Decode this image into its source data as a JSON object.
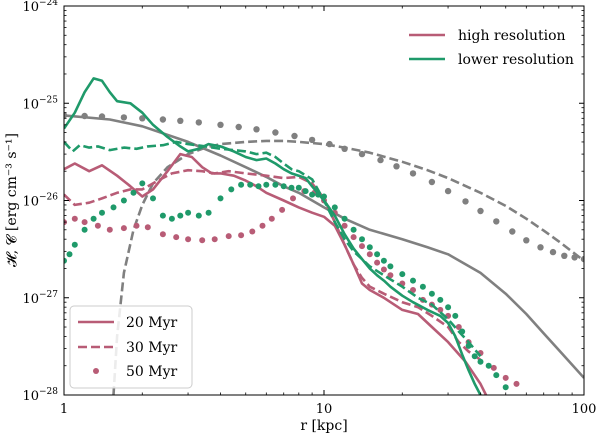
{
  "colors": {
    "high": "#b85c76",
    "lower": "#1f9a6a",
    "reference": "#808080"
  },
  "chart_data": {
    "type": "line",
    "xscale": "log",
    "yscale": "log",
    "xlim": [
      1,
      100
    ],
    "ylim": [
      1e-28,
      1e-24
    ],
    "xlabel": "r [kpc]",
    "ylabel": "𝓗, 𝓒 [erg cm⁻³ s⁻¹]",
    "x_ticks": [
      {
        "value": 1,
        "label": "1"
      },
      {
        "value": 10,
        "label": "10"
      },
      {
        "value": 100,
        "label": "100"
      }
    ],
    "y_ticks": [
      {
        "value": 1e-28,
        "mant": "10",
        "exp": "−28"
      },
      {
        "value": 1e-27,
        "mant": "10",
        "exp": "−27"
      },
      {
        "value": 1e-26,
        "mant": "10",
        "exp": "−26"
      },
      {
        "value": 1e-25,
        "mant": "10",
        "exp": "−25"
      },
      {
        "value": 1e-24,
        "mant": "10",
        "exp": "−24"
      }
    ],
    "legend_resolution": {
      "placement": "top-right",
      "entries": [
        {
          "label": "high resolution",
          "color_key": "high"
        },
        {
          "label": "lower resolution",
          "color_key": "lower"
        }
      ]
    },
    "legend_time": {
      "placement": "lower-left",
      "entries": [
        {
          "label": "20 Myr",
          "style": "solid"
        },
        {
          "label": "30 Myr",
          "style": "dashed"
        },
        {
          "label": "50 Myr",
          "style": "dotted"
        }
      ]
    },
    "series": [
      {
        "id": "high-20",
        "group": "high",
        "style": "solid",
        "x": [
          1.0,
          1.1,
          1.25,
          1.4,
          1.6,
          1.8,
          2.0,
          2.2,
          2.5,
          2.8,
          3.1,
          3.4,
          3.7,
          4.0,
          4.5,
          5,
          5.5,
          6,
          7,
          8,
          9,
          10,
          11,
          12,
          13,
          14,
          15,
          17,
          20,
          23,
          26,
          30,
          35,
          40,
          42
        ],
        "y": [
          2.1e-26,
          2.4e-26,
          2e-26,
          2.3e-26,
          1.8e-26,
          1.4e-26,
          1.1e-26,
          1.3e-26,
          2e-26,
          3e-26,
          2.8e-26,
          2.2e-26,
          1.9e-26,
          1.9e-26,
          1.8e-26,
          1.6e-26,
          1.4e-26,
          1.2e-26,
          1e-26,
          8.5e-27,
          7.5e-27,
          6.8e-27,
          5.5e-27,
          3.5e-27,
          2.2e-27,
          1.4e-27,
          1.2e-27,
          1e-27,
          7.5e-28,
          6.8e-28,
          5e-28,
          3.5e-28,
          2.2e-28,
          1.3e-28,
          1e-28
        ]
      },
      {
        "id": "high-30",
        "group": "high",
        "style": "dashed",
        "x": [
          1.0,
          1.1,
          1.25,
          1.4,
          1.6,
          1.8,
          2.0,
          2.3,
          2.6,
          3.0,
          3.4,
          3.8,
          4.3,
          5,
          6,
          7,
          8,
          9,
          10,
          11,
          12,
          13,
          14,
          15,
          17,
          20,
          23,
          26,
          30,
          33,
          36,
          40
        ],
        "y": [
          1.15e-26,
          9e-27,
          9.5e-27,
          1.05e-26,
          1.2e-26,
          1.3e-26,
          1.3e-26,
          1.6e-26,
          1.9e-26,
          2.05e-26,
          2e-26,
          1.9e-26,
          2e-26,
          1.9e-26,
          1.8e-26,
          1.7e-26,
          1.75e-26,
          1.5e-26,
          1.05e-26,
          6e-27,
          3.5e-27,
          2.2e-27,
          1.6e-27,
          1.3e-27,
          1.1e-27,
          9e-28,
          8e-28,
          6.5e-28,
          5e-28,
          3.5e-28,
          2.8e-28,
          2.3e-28
        ]
      },
      {
        "id": "high-50",
        "group": "high",
        "style": "dotted",
        "x": [
          1.0,
          1.1,
          1.2,
          1.35,
          1.5,
          1.7,
          1.9,
          2.1,
          2.4,
          2.7,
          3.0,
          3.4,
          3.8,
          4.3,
          4.8,
          5.3,
          5.8,
          6.3,
          6.9,
          7.6,
          8.4,
          9.2,
          10,
          11,
          12,
          13,
          14,
          15,
          16,
          17,
          18,
          20,
          22,
          24,
          26,
          28,
          30,
          33,
          36,
          40,
          45,
          50,
          55
        ],
        "y": [
          6e-27,
          6.5e-27,
          6e-27,
          5.5e-27,
          5e-27,
          5.2e-27,
          5.5e-27,
          5.3e-27,
          4.5e-27,
          4.2e-27,
          4e-27,
          3.9e-27,
          4e-27,
          4.3e-27,
          4.4e-27,
          4.8e-27,
          5.5e-27,
          6.5e-27,
          8e-27,
          1.05e-26,
          1.25e-26,
          1.2e-26,
          1e-26,
          7.5e-27,
          5.5e-27,
          4.2e-27,
          3.4e-27,
          2.8e-27,
          2.3e-27,
          1.95e-27,
          1.7e-27,
          1.4e-27,
          1.2e-27,
          9.5e-28,
          8.5e-28,
          7.5e-28,
          6.5e-28,
          5e-28,
          3.5e-28,
          2.7e-28,
          1.9e-28,
          1.5e-28,
          1.3e-28
        ]
      },
      {
        "id": "lower-20",
        "group": "lower",
        "style": "solid",
        "x": [
          1.0,
          1.1,
          1.2,
          1.3,
          1.4,
          1.5,
          1.6,
          1.8,
          2.0,
          2.2,
          2.5,
          2.8,
          3.0,
          3.3,
          3.6,
          4.0,
          4.5,
          5,
          5.5,
          6,
          6.5,
          7,
          7.5,
          8,
          8.5,
          9,
          10,
          11,
          12,
          13,
          14,
          15,
          16,
          17,
          18,
          20,
          22,
          25,
          28,
          30,
          32,
          34,
          36,
          38,
          40
        ],
        "y": [
          5.5e-26,
          8e-26,
          1.3e-25,
          1.8e-25,
          1.7e-25,
          1.3e-25,
          1.05e-25,
          1e-25,
          8e-26,
          6e-26,
          4.5e-26,
          3.6e-26,
          3.2e-26,
          3.4e-26,
          3.8e-26,
          3.6e-26,
          3.2e-26,
          2.8e-26,
          2.6e-26,
          2.7e-26,
          2.4e-26,
          2.1e-26,
          1.9e-26,
          1.8e-26,
          1.7e-26,
          1.4e-26,
          1e-26,
          7e-27,
          4.5e-27,
          3.2e-27,
          2.5e-27,
          2e-27,
          1.7e-27,
          1.5e-27,
          1.3e-27,
          1.05e-27,
          9e-28,
          7.5e-28,
          6.5e-28,
          5.5e-28,
          4e-28,
          2.6e-28,
          1.8e-28,
          1.3e-28,
          1e-28
        ]
      },
      {
        "id": "lower-30",
        "group": "lower",
        "style": "dashed",
        "x": [
          1.0,
          1.08,
          1.15,
          1.25,
          1.35,
          1.5,
          1.7,
          1.9,
          2.1,
          2.4,
          2.7,
          3.0,
          3.5,
          4,
          4.5,
          5,
          5.5,
          6,
          6.5,
          7,
          7.5,
          8,
          9,
          10,
          11,
          12,
          13,
          14,
          15,
          17,
          20,
          23,
          26,
          30,
          33,
          36,
          40
        ],
        "y": [
          4e-26,
          3.2e-26,
          3.7e-26,
          3.5e-26,
          3.6e-26,
          3.3e-26,
          3.5e-26,
          3.4e-26,
          3.6e-26,
          3.7e-26,
          4e-26,
          3.8e-26,
          3.6e-26,
          3.4e-26,
          3.3e-26,
          3.2e-26,
          3e-26,
          3.1e-26,
          2.8e-26,
          2.4e-26,
          2.1e-26,
          2e-26,
          1.65e-26,
          1e-26,
          6e-27,
          4e-27,
          3e-27,
          2.5e-27,
          2.1e-27,
          1.7e-27,
          1.3e-27,
          1e-27,
          8.5e-28,
          6e-28,
          4.5e-28,
          3.5e-28,
          2.5e-28
        ]
      },
      {
        "id": "lower-50",
        "group": "lower",
        "style": "dotted",
        "x": [
          1.0,
          1.05,
          1.1,
          1.2,
          1.3,
          1.4,
          1.55,
          1.7,
          1.85,
          2.0,
          2.2,
          2.4,
          2.6,
          2.8,
          3.0,
          3.3,
          3.6,
          4.0,
          4.4,
          4.8,
          5.2,
          5.6,
          6.0,
          6.5,
          7,
          7.5,
          8,
          8.5,
          9,
          9.5,
          10,
          11,
          12,
          13,
          14,
          15,
          16,
          17,
          18,
          20,
          22,
          24,
          26,
          28,
          30,
          32,
          34,
          36,
          38,
          40,
          43,
          46,
          50
        ],
        "y": [
          2.4e-27,
          2.8e-27,
          3.5e-27,
          5e-27,
          6.5e-27,
          7.5e-27,
          8.5e-27,
          1e-26,
          1.2e-26,
          1.5e-26,
          1.05e-26,
          7e-27,
          6.5e-27,
          7e-27,
          7.5e-27,
          7e-27,
          7.5e-27,
          1.05e-26,
          1.3e-26,
          1.45e-26,
          1.45e-26,
          1.4e-26,
          1.45e-26,
          1.45e-26,
          1.4e-26,
          1.35e-26,
          1.35e-26,
          1.25e-26,
          1.15e-26,
          1.15e-26,
          1.1e-26,
          8.5e-27,
          6.5e-27,
          5e-27,
          4e-27,
          3.3e-27,
          2.8e-27,
          2.4e-27,
          2.1e-27,
          1.75e-27,
          1.5e-27,
          1.3e-27,
          1.1e-27,
          9.5e-28,
          8e-28,
          6.5e-28,
          4.5e-28,
          3.2e-28,
          2.5e-28,
          2.2e-28,
          2e-28,
          1.6e-28,
          1.2e-28
        ]
      },
      {
        "id": "ref-solid",
        "group": "reference",
        "style": "solid",
        "x": [
          1,
          1.5,
          2,
          3,
          4,
          5,
          6,
          7,
          8,
          10,
          12,
          15,
          20,
          25,
          30,
          40,
          50,
          60,
          70,
          80,
          100
        ],
        "y": [
          7.5e-26,
          6.8e-26,
          5.8e-26,
          4e-26,
          2.9e-26,
          2.2e-26,
          1.75e-26,
          1.4e-26,
          1.2e-26,
          8.5e-27,
          6.5e-27,
          5e-27,
          4e-27,
          3.3e-27,
          2.8e-27,
          1.8e-27,
          1.1e-27,
          6.8e-28,
          4.3e-28,
          2.9e-28,
          1.5e-28
        ]
      },
      {
        "id": "ref-dashed",
        "group": "reference",
        "style": "dashed",
        "x": [
          1.55,
          1.6,
          1.7,
          1.85,
          2.0,
          2.2,
          2.5,
          3.0,
          3.5,
          4,
          5,
          6,
          7,
          8,
          10,
          12,
          15,
          20,
          25,
          30,
          40,
          50,
          60,
          70,
          80,
          100
        ],
        "y": [
          1e-28,
          4e-28,
          1.8e-27,
          5e-27,
          9e-27,
          1.5e-26,
          2.2e-26,
          3e-26,
          3.5e-26,
          3.8e-26,
          4e-26,
          4.1e-26,
          4.1e-26,
          4e-26,
          3.8e-26,
          3.5e-26,
          3.1e-26,
          2.5e-26,
          2.05e-26,
          1.7e-26,
          1.2e-26,
          8.8e-27,
          6.5e-27,
          4.9e-27,
          3.8e-27,
          2.4e-27
        ]
      },
      {
        "id": "ref-dotted",
        "group": "reference",
        "style": "dotted",
        "x": [
          1,
          1.2,
          1.4,
          1.7,
          2,
          2.4,
          2.8,
          3.3,
          4,
          4.7,
          5.5,
          6.5,
          7.7,
          9,
          10.5,
          12,
          14,
          16.5,
          19,
          22,
          26,
          30,
          35,
          40,
          46,
          53,
          60,
          68,
          76,
          84,
          92,
          100
        ],
        "y": [
          7.5e-26,
          7.4e-26,
          7.3e-26,
          7.15e-26,
          7e-26,
          6.8e-26,
          6.6e-26,
          6.35e-26,
          6e-26,
          5.7e-26,
          5.4e-26,
          5e-26,
          4.6e-26,
          4.2e-26,
          3.8e-26,
          3.4e-26,
          3e-26,
          2.6e-26,
          2.25e-26,
          1.9e-26,
          1.55e-26,
          1.25e-26,
          9.8e-27,
          7.8e-27,
          6.1e-27,
          4.8e-27,
          3.9e-27,
          3.3e-27,
          2.95e-27,
          2.7e-27,
          2.6e-27,
          2.5e-27
        ]
      }
    ]
  }
}
